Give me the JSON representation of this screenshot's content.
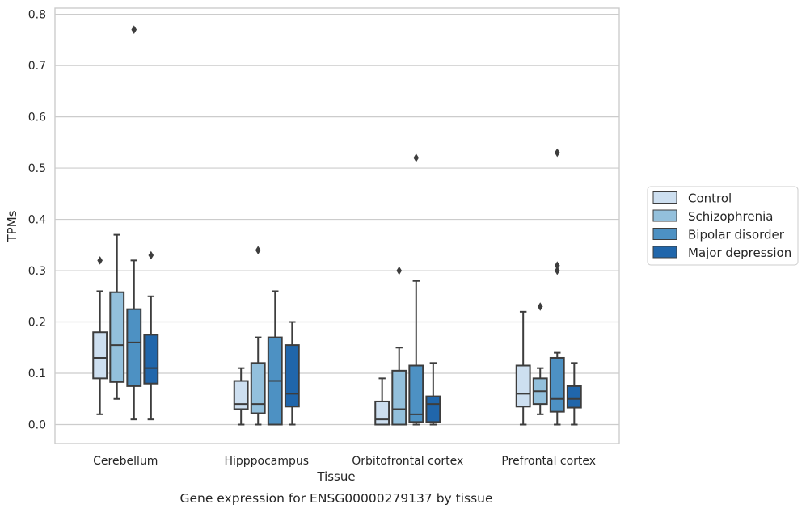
{
  "chart_data": {
    "type": "box",
    "caption": "Gene expression for ENSG00000279137 by tissue",
    "xlabel": "Tissue",
    "ylabel": "TPMs",
    "ylim": [
      -0.037,
      0.812
    ],
    "yticks": [
      0.0,
      0.1,
      0.2,
      0.3,
      0.4,
      0.5,
      0.6,
      0.7,
      0.8
    ],
    "ytick_labels": [
      "0.0",
      "0.1",
      "0.2",
      "0.3",
      "0.4",
      "0.5",
      "0.6",
      "0.7",
      "0.8"
    ],
    "grid": "horizontal",
    "legend_position": "right",
    "categories": [
      "Cerebellum",
      "Hipppocampus",
      "Orbitofrontal cortex",
      "Prefrontal cortex"
    ],
    "series": [
      {
        "name": "Control",
        "color": "#cddff0",
        "boxes": [
          {
            "whisker_low": 0.02,
            "q1": 0.09,
            "median": 0.13,
            "q3": 0.18,
            "whisker_high": 0.26,
            "outliers": [
              0.32
            ]
          },
          {
            "whisker_low": 0.0,
            "q1": 0.03,
            "median": 0.04,
            "q3": 0.085,
            "whisker_high": 0.11,
            "outliers": []
          },
          {
            "whisker_low": 0.0,
            "q1": 0.0,
            "median": 0.01,
            "q3": 0.045,
            "whisker_high": 0.09,
            "outliers": []
          },
          {
            "whisker_low": 0.0,
            "q1": 0.035,
            "median": 0.06,
            "q3": 0.115,
            "whisker_high": 0.22,
            "outliers": []
          }
        ]
      },
      {
        "name": "Schizophrenia",
        "color": "#93c0dc",
        "boxes": [
          {
            "whisker_low": 0.05,
            "q1": 0.083,
            "median": 0.155,
            "q3": 0.258,
            "whisker_high": 0.37,
            "outliers": []
          },
          {
            "whisker_low": 0.0,
            "q1": 0.022,
            "median": 0.04,
            "q3": 0.12,
            "whisker_high": 0.17,
            "outliers": [
              0.34
            ]
          },
          {
            "whisker_low": 0.0,
            "q1": 0.0,
            "median": 0.03,
            "q3": 0.105,
            "whisker_high": 0.15,
            "outliers": [
              0.3
            ]
          },
          {
            "whisker_low": 0.02,
            "q1": 0.04,
            "median": 0.065,
            "q3": 0.09,
            "whisker_high": 0.11,
            "outliers": [
              0.23
            ]
          }
        ]
      },
      {
        "name": "Bipolar disorder",
        "color": "#4d91c3",
        "boxes": [
          {
            "whisker_low": 0.01,
            "q1": 0.075,
            "median": 0.16,
            "q3": 0.225,
            "whisker_high": 0.32,
            "outliers": [
              0.77
            ]
          },
          {
            "whisker_low": 0.0,
            "q1": 0.0,
            "median": 0.085,
            "q3": 0.17,
            "whisker_high": 0.26,
            "outliers": []
          },
          {
            "whisker_low": 0.0,
            "q1": 0.005,
            "median": 0.02,
            "q3": 0.115,
            "whisker_high": 0.28,
            "outliers": [
              0.52
            ]
          },
          {
            "whisker_low": 0.0,
            "q1": 0.025,
            "median": 0.05,
            "q3": 0.13,
            "whisker_high": 0.14,
            "outliers": [
              0.3,
              0.31,
              0.53
            ]
          }
        ]
      },
      {
        "name": "Major depression",
        "color": "#2066ab",
        "boxes": [
          {
            "whisker_low": 0.01,
            "q1": 0.08,
            "median": 0.11,
            "q3": 0.175,
            "whisker_high": 0.25,
            "outliers": [
              0.33
            ]
          },
          {
            "whisker_low": 0.0,
            "q1": 0.035,
            "median": 0.06,
            "q3": 0.155,
            "whisker_high": 0.2,
            "outliers": []
          },
          {
            "whisker_low": 0.0,
            "q1": 0.005,
            "median": 0.04,
            "q3": 0.055,
            "whisker_high": 0.12,
            "outliers": []
          },
          {
            "whisker_low": 0.0,
            "q1": 0.033,
            "median": 0.05,
            "q3": 0.075,
            "whisker_high": 0.12,
            "outliers": []
          }
        ]
      }
    ]
  }
}
